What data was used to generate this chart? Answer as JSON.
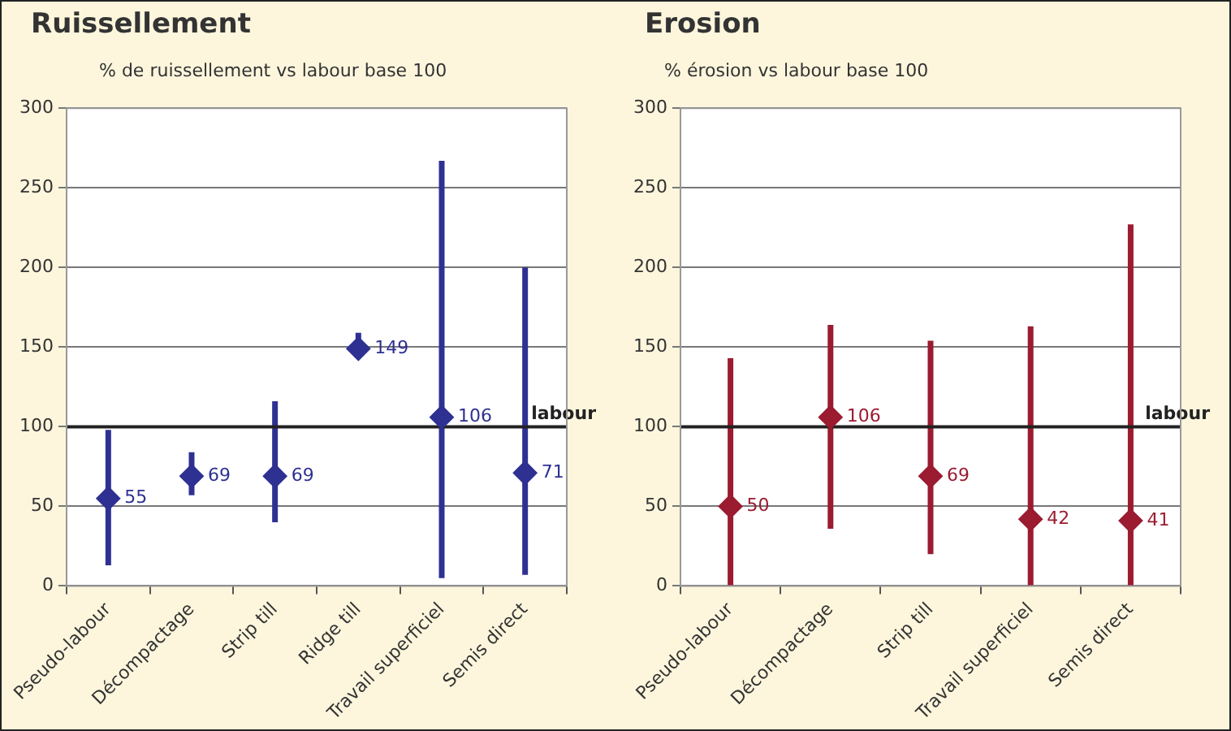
{
  "chart_data": [
    {
      "type": "scatter",
      "title": "Ruissellement",
      "ylabel": "% de ruissellement vs labour base 100",
      "categories": [
        "Pseudo-labour",
        "Décompactage",
        "Strip till",
        "Ridge till",
        "Travail superficiel",
        "Semis direct"
      ],
      "series": [
        {
          "color": "#2e3192",
          "values": [
            55,
            69,
            69,
            149,
            106,
            71
          ],
          "errors": [
            [
              13,
              98
            ],
            [
              57,
              84
            ],
            [
              40,
              116
            ],
            [
              143,
              159
            ],
            [
              5,
              267
            ],
            [
              7,
              200
            ]
          ]
        }
      ],
      "ylim": [
        0,
        300
      ],
      "yticks": [
        0,
        50,
        100,
        150,
        200,
        250,
        300
      ],
      "grid": "y",
      "marker": "diamond",
      "data_labels": true,
      "ref_lines": [
        {
          "axis": "y",
          "value": 100,
          "label": "labour",
          "color": "#222222"
        }
      ]
    },
    {
      "type": "scatter",
      "title": "Erosion",
      "ylabel": "% érosion vs labour base 100",
      "categories": [
        "Pseudo-labour",
        "Décompactage",
        "Strip till",
        "Travail superficiel",
        "Semis direct"
      ],
      "series": [
        {
          "color": "#9b1b30",
          "values": [
            50,
            106,
            69,
            42,
            41
          ],
          "errors": [
            [
              0,
              143
            ],
            [
              36,
              164
            ],
            [
              20,
              154
            ],
            [
              0,
              163
            ],
            [
              0,
              227
            ]
          ]
        }
      ],
      "ylim": [
        0,
        300
      ],
      "yticks": [
        0,
        50,
        100,
        150,
        200,
        250,
        300
      ],
      "grid": "y",
      "marker": "diamond",
      "data_labels": true,
      "ref_lines": [
        {
          "axis": "y",
          "value": 100,
          "label": "labour",
          "color": "#222222"
        }
      ]
    }
  ]
}
